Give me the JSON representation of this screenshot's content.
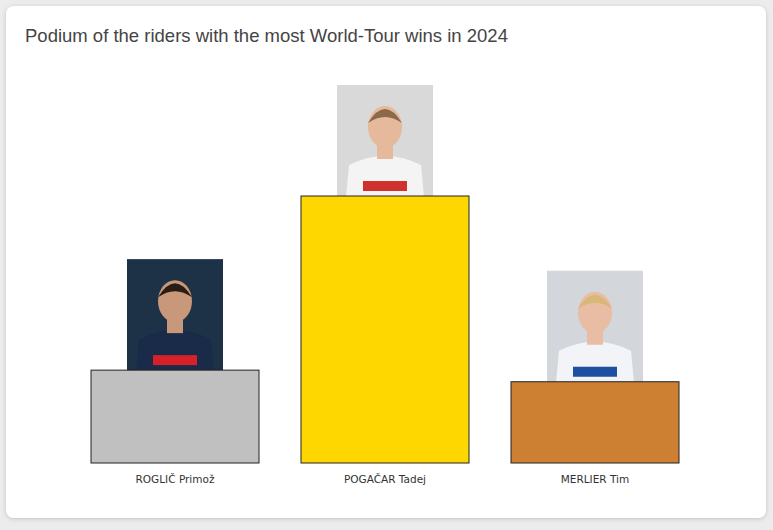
{
  "chart_data": {
    "type": "bar",
    "title": "Podium of the riders with the most World-Tour wins in 2024",
    "categories": [
      "ROGLIČ Primož",
      "POGAČAR Tadej",
      "MERLIER Tim"
    ],
    "values": [
      8,
      23,
      7
    ],
    "colors": [
      "#c0c0c0",
      "#ffd700",
      "#cd7f32"
    ],
    "ylim": [
      0,
      23
    ],
    "data_labels": true,
    "tick_labels": "x"
  }
}
